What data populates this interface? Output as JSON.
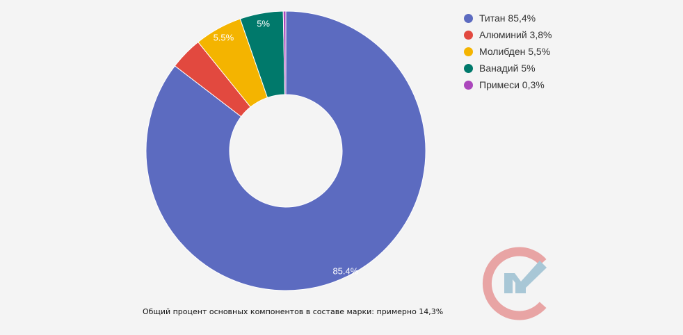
{
  "chart_data": {
    "type": "pie",
    "donut": true,
    "title": "",
    "categories": [
      "Титан",
      "Алюминий",
      "Молибден",
      "Ванадий",
      "Примеси"
    ],
    "values": [
      85.4,
      3.8,
      5.5,
      5,
      0.3
    ],
    "slice_labels": [
      "85.4%",
      "",
      "5.5%",
      "5%",
      ""
    ],
    "colors": [
      "#5c6bc0",
      "#e2493f",
      "#f4b400",
      "#00796b",
      "#ab47bc"
    ],
    "start_angle_deg": 0,
    "direction": "clockwise",
    "legend_position": "top-right",
    "legend": [
      {
        "label": "Титан 85,4%",
        "color": "#5c6bc0"
      },
      {
        "label": "Алюминий 3,8%",
        "color": "#e2493f"
      },
      {
        "label": "Молибден 5,5%",
        "color": "#f4b400"
      },
      {
        "label": "Ванадий 5%",
        "color": "#00796b"
      },
      {
        "label": "Примеси 0,3%",
        "color": "#ab47bc"
      }
    ]
  },
  "caption": "Общий процент основных компонентов в составе марки: примерно 14,3%",
  "logo": {
    "icon": "cm-logo-icon",
    "colors": {
      "ring": "#e8a4a4",
      "mark": "#a8c7d6"
    }
  }
}
